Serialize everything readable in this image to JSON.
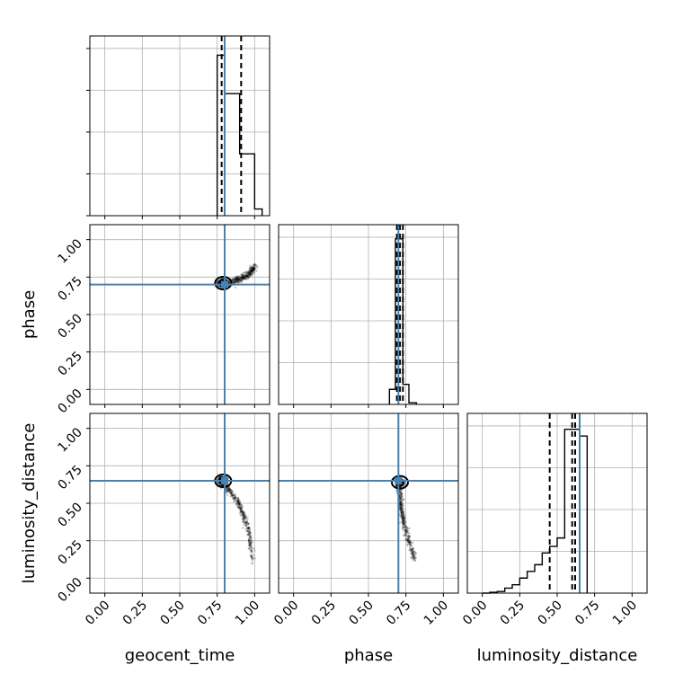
{
  "chart_data": {
    "type": "corner",
    "parameters": [
      "geocent_time",
      "phase",
      "luminosity_distance"
    ],
    "axis_range": [
      -0.1,
      1.1
    ],
    "ticks": [
      0.0,
      0.25,
      0.5,
      0.75,
      1.0
    ],
    "tick_labels": [
      "0.00",
      "0.25",
      "0.50",
      "0.75",
      "1.00"
    ],
    "grid": true,
    "colors": {
      "truth": "#4682b4",
      "hist": "#000000",
      "samples": "#000000"
    },
    "truths": {
      "geocent_time": 0.8,
      "phase": 0.7,
      "luminosity_distance": 0.65
    },
    "histograms": [
      {
        "parameter": "geocent_time",
        "bin_edges": [
          0.75,
          0.8,
          0.85,
          0.9,
          0.95,
          1.0,
          1.05
        ],
        "counts": [
          0.96,
          0.73,
          0.73,
          0.37,
          0.37,
          0.04
        ],
        "quantiles": [
          0.78,
          0.8,
          0.91
        ]
      },
      {
        "parameter": "phase",
        "bin_edges": [
          0.64,
          0.68,
          0.73,
          0.77,
          0.82
        ],
        "counts": [
          0.09,
          0.99,
          0.12,
          0.01
        ],
        "quantiles": [
          0.69,
          0.71,
          0.73
        ]
      },
      {
        "parameter": "luminosity_distance",
        "bin_edges": [
          0.0,
          0.05,
          0.1,
          0.15,
          0.2,
          0.25,
          0.3,
          0.35,
          0.4,
          0.45,
          0.5,
          0.55,
          0.6,
          0.65,
          0.7
        ],
        "counts": [
          0.0,
          0.005,
          0.01,
          0.03,
          0.05,
          0.09,
          0.13,
          0.17,
          0.24,
          0.28,
          0.33,
          0.98,
          0.98,
          0.94
        ],
        "quantiles": [
          0.45,
          0.6,
          0.62
        ]
      }
    ],
    "scatter_panels": [
      {
        "x": "geocent_time",
        "y": "phase",
        "center": [
          0.79,
          0.71
        ],
        "trend": [
          [
            0.75,
            0.71
          ],
          [
            0.82,
            0.71
          ],
          [
            0.88,
            0.73
          ],
          [
            0.93,
            0.75
          ],
          [
            0.97,
            0.78
          ],
          [
            1.0,
            0.82
          ]
        ]
      },
      {
        "x": "geocent_time",
        "y": "luminosity_distance",
        "center": [
          0.79,
          0.65
        ],
        "trend": [
          [
            0.76,
            0.66
          ],
          [
            0.82,
            0.6
          ],
          [
            0.88,
            0.52
          ],
          [
            0.92,
            0.43
          ],
          [
            0.96,
            0.32
          ],
          [
            0.99,
            0.12
          ]
        ]
      },
      {
        "x": "phase",
        "y": "luminosity_distance",
        "center": [
          0.71,
          0.64
        ],
        "trend": [
          [
            0.7,
            0.66
          ],
          [
            0.71,
            0.55
          ],
          [
            0.72,
            0.45
          ],
          [
            0.74,
            0.35
          ],
          [
            0.77,
            0.25
          ],
          [
            0.81,
            0.12
          ]
        ]
      }
    ]
  }
}
